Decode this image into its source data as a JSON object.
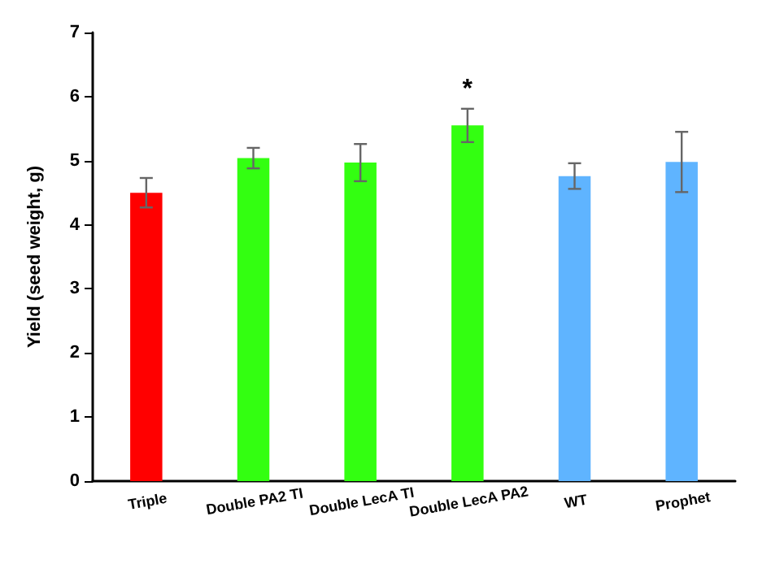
{
  "chart_data": {
    "type": "bar",
    "ylabel": "Yield (seed weight, g)",
    "categories": [
      "Triple",
      "Double PA2 TI",
      "Double LecA TI",
      "Double LecA PA2",
      "WT",
      "Prophet"
    ],
    "values": [
      4.5,
      5.04,
      4.97,
      5.55,
      4.76,
      4.98
    ],
    "errors": [
      0.23,
      0.16,
      0.29,
      0.26,
      0.2,
      0.47
    ],
    "colors": [
      "#ff0000",
      "#33ff11",
      "#33ff11",
      "#33ff11",
      "#5fb4ff",
      "#5fb4ff"
    ],
    "annotations": [
      "*"
    ],
    "ylim": [
      0,
      7
    ],
    "yticks": [
      0,
      1,
      2,
      3,
      4,
      5,
      6,
      7
    ],
    "grid": false
  }
}
